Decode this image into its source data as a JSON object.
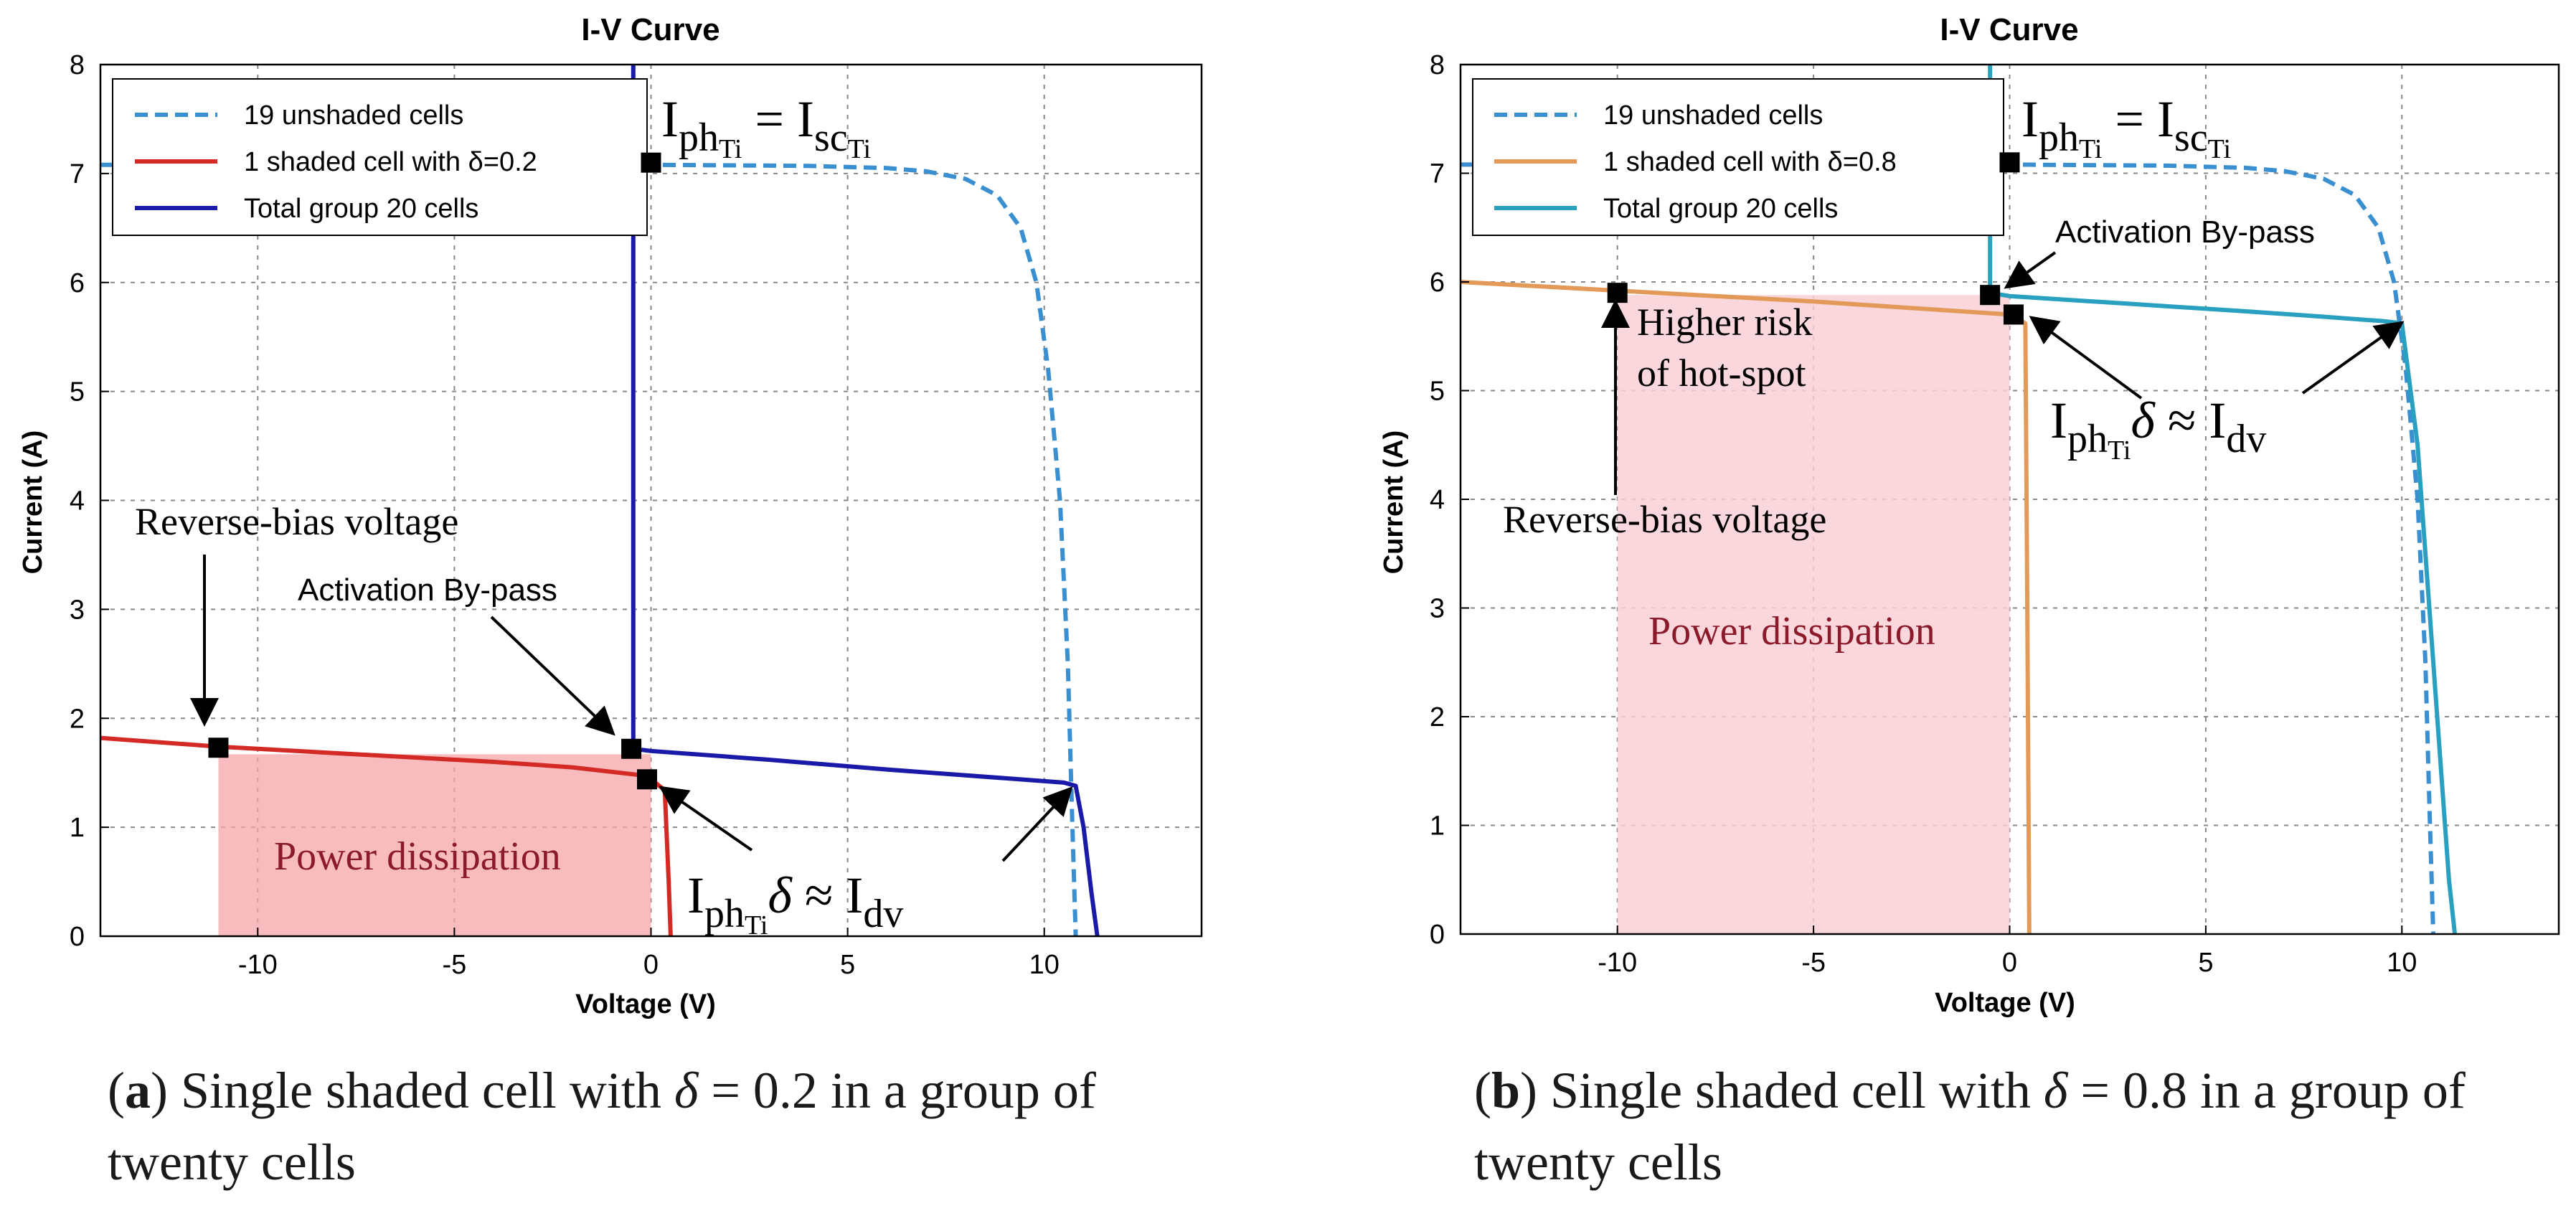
{
  "chart_data": [
    {
      "type": "line",
      "title": "I-V Curve",
      "xlabel": "Voltage (V)",
      "ylabel": "Current (A)",
      "xlim": [
        -14,
        14
      ],
      "ylim": [
        0,
        8
      ],
      "xticks": [
        -10,
        -5,
        0,
        5,
        10
      ],
      "yticks": [
        0,
        1,
        2,
        3,
        4,
        5,
        6,
        7,
        8
      ],
      "xtick_labels": [
        "-10",
        "-5",
        "0",
        "5",
        "10"
      ],
      "ytick_labels": [
        "0",
        "1",
        "2",
        "3",
        "4",
        "5",
        "6",
        "7",
        "8"
      ],
      "grid": true,
      "legend_position": "top-left",
      "series": [
        {
          "name": "19 unshaded cells",
          "color": "#3a8fd0",
          "dash": "dashed",
          "x": [
            -14,
            -5,
            0,
            4,
            6,
            7,
            8,
            8.8,
            9.4,
            9.8,
            10.1,
            10.4,
            10.6,
            10.7,
            10.8
          ],
          "y": [
            7.08,
            7.08,
            7.08,
            7.07,
            7.05,
            7.02,
            6.95,
            6.8,
            6.5,
            6.0,
            5.2,
            4.0,
            2.5,
            1.2,
            0
          ]
        },
        {
          "name": "1 shaded cell with δ=0.2",
          "color": "#d42a26",
          "dash": "solid",
          "x": [
            -14,
            -11,
            -7,
            -4,
            -2,
            -0.3,
            0,
            0.35,
            0.45,
            0.5
          ],
          "y": [
            1.82,
            1.74,
            1.66,
            1.6,
            1.55,
            1.48,
            1.44,
            1.34,
            0.5,
            0
          ]
        },
        {
          "name": "Total group 20 cells",
          "color": "#1a1aa8",
          "dash": "solid",
          "x": [
            -0.45,
            -0.45,
            0,
            3,
            6,
            9,
            10.5,
            10.8,
            11,
            11.2,
            11.35
          ],
          "y": [
            8.0,
            1.72,
            1.7,
            1.62,
            1.53,
            1.45,
            1.41,
            1.38,
            1.0,
            0.4,
            0
          ]
        }
      ],
      "points": [
        {
          "x": 0,
          "y": 7.1
        },
        {
          "x": -11,
          "y": 1.73
        },
        {
          "x": -0.5,
          "y": 1.72
        },
        {
          "x": -0.1,
          "y": 1.44
        }
      ],
      "shaded_region": {
        "label": "Power dissipation",
        "x": [
          -11,
          0
        ],
        "y": [
          0,
          1.67
        ]
      },
      "annotations": {
        "isc": {
          "lhs": "I",
          "lhs_sub1": "ph",
          "lhs_sub2": "Ti",
          "eq": " = ",
          "rhs": "I",
          "rhs_sub1": "sc",
          "rhs_sub2": "Ti"
        },
        "reverse_bias": "Reverse-bias voltage",
        "bypass": "Activation By-pass",
        "iph_delta": {
          "base": "I",
          "sub1": "ph",
          "sub2": "Ti",
          "delta": "δ",
          "approx": " ≈ ",
          "rhs": "I",
          "rhs_sub": "dv"
        }
      },
      "caption": {
        "label": "a",
        "text_before": " Single shaded cell with ",
        "symbol": "δ",
        "eq": " = ",
        "value": "0.2",
        "text_after": " in a group of twenty cells"
      }
    },
    {
      "type": "line",
      "title": "I-V Curve",
      "xlabel": "Voltage (V)",
      "ylabel": "Current (A)",
      "xlim": [
        -14,
        14
      ],
      "ylim": [
        0,
        8
      ],
      "xticks": [
        -10,
        -5,
        0,
        5,
        10
      ],
      "yticks": [
        0,
        1,
        2,
        3,
        4,
        5,
        6,
        7,
        8
      ],
      "xtick_labels": [
        "-10",
        "-5",
        "0",
        "5",
        "10"
      ],
      "ytick_labels": [
        "0",
        "1",
        "2",
        "3",
        "4",
        "5",
        "6",
        "7",
        "8"
      ],
      "grid": true,
      "legend_position": "top-left",
      "series": [
        {
          "name": "19 unshaded cells",
          "color": "#3a8fd0",
          "dash": "dashed",
          "x": [
            -14,
            -5,
            0,
            4,
            6,
            7,
            8,
            8.8,
            9.4,
            9.8,
            10.1,
            10.4,
            10.6,
            10.7,
            10.8
          ],
          "y": [
            7.08,
            7.08,
            7.08,
            7.07,
            7.05,
            7.02,
            6.95,
            6.8,
            6.5,
            6.0,
            5.2,
            4.0,
            2.5,
            1.2,
            0
          ]
        },
        {
          "name": "1 shaded cell with δ=0.8",
          "color": "#e39a58",
          "dash": "solid",
          "x": [
            -14,
            -10,
            -5,
            0,
            0.4,
            0.45,
            0.5
          ],
          "y": [
            6.0,
            5.92,
            5.82,
            5.7,
            5.62,
            3.0,
            0
          ]
        },
        {
          "name": "Total group 20 cells",
          "color": "#2aa0c0",
          "dash": "solid",
          "x": [
            -0.5,
            -0.5,
            0,
            3,
            6,
            8,
            9.5,
            10,
            10.4,
            10.8,
            11.2,
            11.35
          ],
          "y": [
            8.0,
            5.9,
            5.87,
            5.8,
            5.73,
            5.68,
            5.64,
            5.62,
            4.5,
            2.5,
            0.5,
            0
          ]
        }
      ],
      "points": [
        {
          "x": 0,
          "y": 7.1
        },
        {
          "x": -10,
          "y": 5.9
        },
        {
          "x": -0.5,
          "y": 5.88
        },
        {
          "x": 0.1,
          "y": 5.7
        }
      ],
      "shaded_region": {
        "label": "Power dissipation",
        "x": [
          -10,
          0
        ],
        "y": [
          0,
          5.88
        ]
      },
      "annotations": {
        "isc": {
          "lhs": "I",
          "lhs_sub1": "ph",
          "lhs_sub2": "Ti",
          "eq": " = ",
          "rhs": "I",
          "rhs_sub1": "sc",
          "rhs_sub2": "Ti"
        },
        "reverse_bias": "Reverse-bias voltage",
        "bypass": "Activation By-pass",
        "hotspot_line1": "Higher risk",
        "hotspot_line2": "of hot-spot",
        "iph_delta": {
          "base": "I",
          "sub1": "ph",
          "sub2": "Ti",
          "delta": "δ",
          "approx": " ≈ ",
          "rhs": "I",
          "rhs_sub": "dv"
        }
      },
      "caption": {
        "label": "b",
        "text_before": " Single shaded cell with ",
        "symbol": "δ",
        "eq": " = ",
        "value": "0.8",
        "text_after": " in a group of twenty cells"
      }
    }
  ]
}
